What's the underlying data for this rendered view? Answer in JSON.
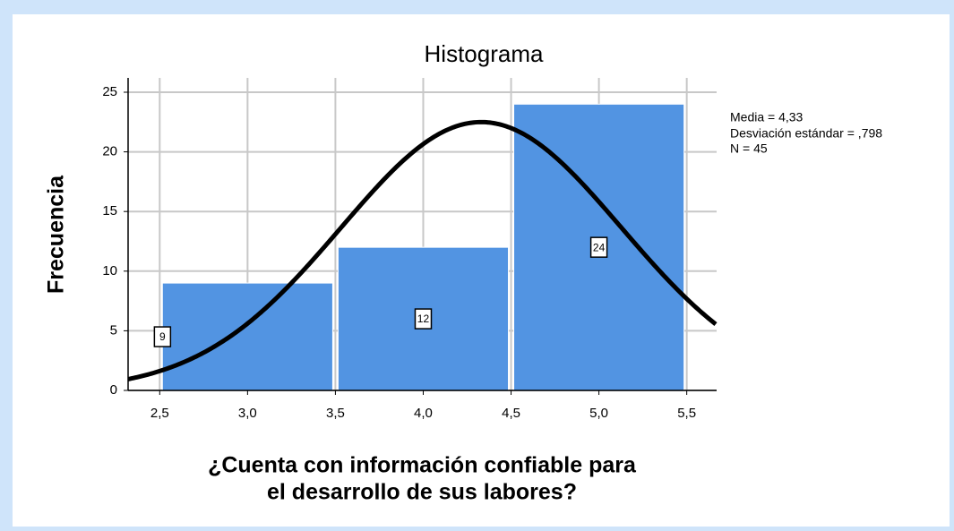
{
  "chart_data": {
    "type": "histogram",
    "title": "Histograma",
    "x_label": [
      "¿Cuenta con información confiable para",
      "el desarrollo de sus labores?"
    ],
    "y_label": "Frecuencia",
    "bins": [
      2.5,
      3.5,
      4.5,
      5.5
    ],
    "values": [
      9,
      12,
      24
    ],
    "color": "#5294e2",
    "xlim": [
      2.32,
      5.67
    ],
    "ylim": [
      0,
      26.2
    ],
    "xticks": [
      {
        "value": 2.5,
        "label": "2,5"
      },
      {
        "value": 3.0,
        "label": "3,0"
      },
      {
        "value": 3.5,
        "label": "3,5"
      },
      {
        "value": 4.0,
        "label": "4,0"
      },
      {
        "value": 4.5,
        "label": "4,5"
      },
      {
        "value": 5.0,
        "label": "5,0"
      },
      {
        "value": 5.5,
        "label": "5,5"
      }
    ],
    "yticks": [
      0,
      5,
      10,
      15,
      20,
      25
    ],
    "grid": true,
    "stats": {
      "mean": {
        "value": 4.33,
        "label": "Media = 4,33"
      },
      "sd": {
        "value": 0.798,
        "label": "Desviación estándar = ,798"
      },
      "n": {
        "value": 45,
        "label": "N = 45"
      }
    }
  }
}
